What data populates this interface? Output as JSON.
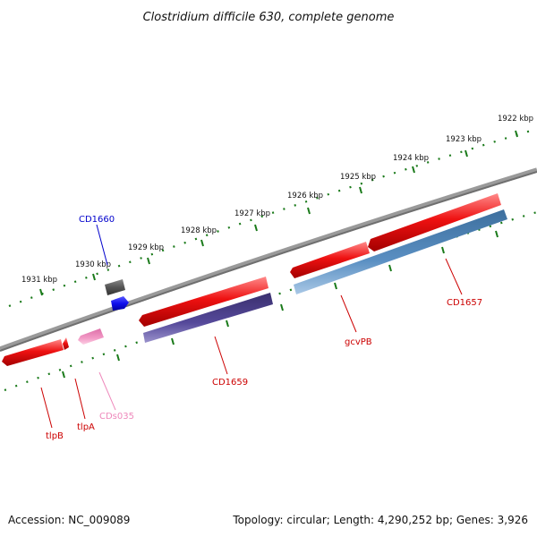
{
  "title": "Clostridium difficile 630, complete genome",
  "kbp_labels": [
    "1922 kbp",
    "1923 kbp",
    "1924 kbp",
    "1925 kbp",
    "1926 kbp",
    "1927 kbp",
    "1928 kbp",
    "1929 kbp",
    "1930 kbp",
    "1931 kbp"
  ],
  "genes": [
    {
      "name": "CD1660",
      "color": "#0000cc"
    },
    {
      "name": "CD1657",
      "color": "#cc0000"
    },
    {
      "name": "gcvPB",
      "color": "#cc0000"
    },
    {
      "name": "CD1659",
      "color": "#cc0000"
    },
    {
      "name": "CDs035",
      "color": "#ee88bb"
    },
    {
      "name": "tlpA",
      "color": "#cc0000"
    },
    {
      "name": "tlpB",
      "color": "#cc0000"
    }
  ],
  "footer": {
    "accession": "Accession: NC_009089",
    "topology": "Topology: circular; Length: 4,290,252 bp; Genes: 3,926"
  },
  "colors": {
    "backbone": "#7f7f7f",
    "ticks": "#1a7a1a",
    "forward_cds": "#ee1111",
    "reverse_cds_blue": "#4a7fb0",
    "reverse_cds_purple": "#4a3d80",
    "rna_pink": "#ee88bb"
  }
}
